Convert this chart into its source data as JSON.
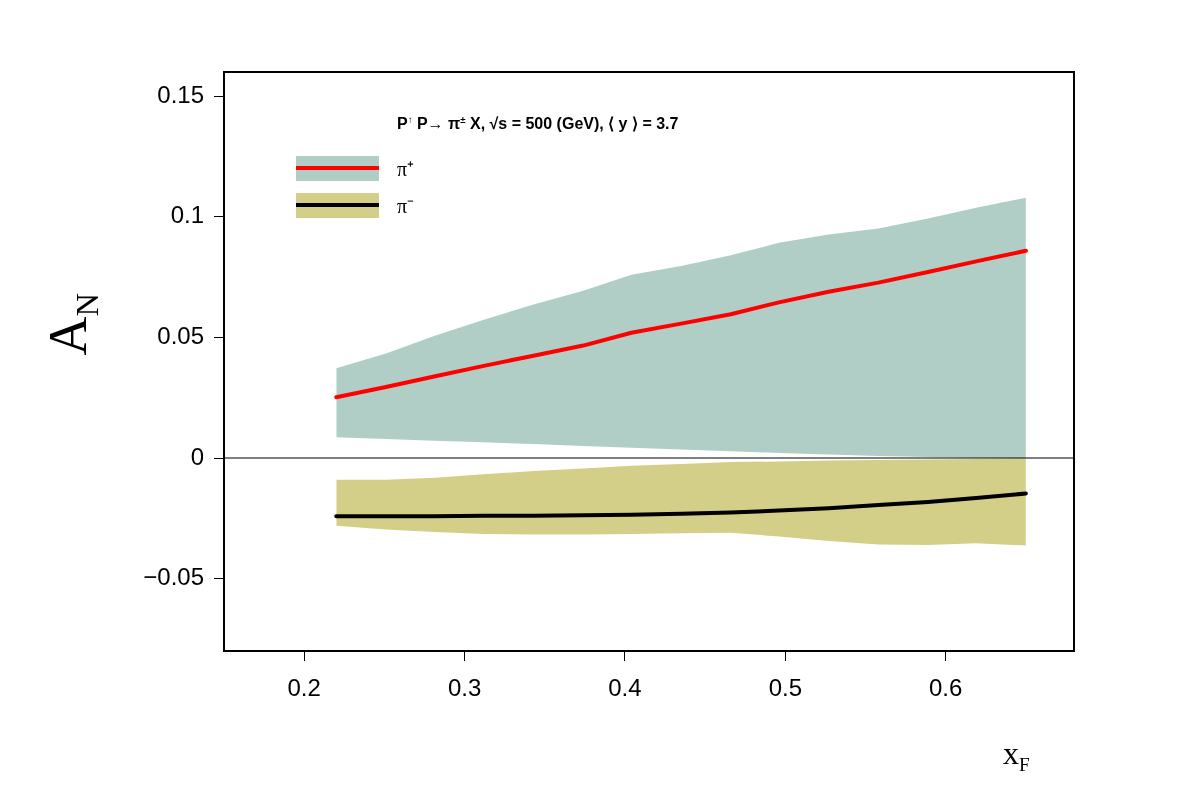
{
  "chart_data": {
    "type": "line",
    "title": "P$^{↑}$ P→ π$^{±}$ X,  √s = 500 (GeV), ⟨ y ⟩ = 3.7",
    "xlabel": "x$_{F}$",
    "ylabel": "A$_{N}$",
    "x": [
      0.22,
      0.251,
      0.281,
      0.312,
      0.343,
      0.374,
      0.404,
      0.435,
      0.466,
      0.496,
      0.527,
      0.558,
      0.589,
      0.619,
      0.65
    ],
    "series": [
      {
        "name": "π⁺",
        "color": "#ff0000",
        "values": [
          0.0252,
          0.0294,
          0.0338,
          0.0382,
          0.0424,
          0.0466,
          0.0519,
          0.0557,
          0.0596,
          0.0645,
          0.0689,
          0.0727,
          0.0771,
          0.0815,
          0.0859
        ],
        "lower": [
          0.0086,
          0.0079,
          0.0072,
          0.0065,
          0.0058,
          0.005,
          0.0042,
          0.0035,
          0.0028,
          0.0021,
          0.0014,
          0.0008,
          0.0004,
          0.0001,
          0
        ],
        "upper": [
          0.0372,
          0.0433,
          0.0506,
          0.0573,
          0.0636,
          0.0693,
          0.076,
          0.0796,
          0.084,
          0.0892,
          0.0926,
          0.0951,
          0.0993,
          0.1037,
          0.1079
        ]
      },
      {
        "name": "π⁻",
        "color": "#000000",
        "values": [
          -0.0241,
          -0.0241,
          -0.0241,
          -0.0239,
          -0.0239,
          -0.0237,
          -0.0235,
          -0.0231,
          -0.0226,
          -0.0218,
          -0.0208,
          -0.0195,
          -0.0182,
          -0.0166,
          -0.0147
        ],
        "lower": [
          -0.0281,
          -0.0296,
          -0.0307,
          -0.0315,
          -0.0317,
          -0.0317,
          -0.0315,
          -0.0312,
          -0.031,
          -0.0325,
          -0.0344,
          -0.0359,
          -0.0361,
          -0.0353,
          -0.0363
        ],
        "upper": [
          -0.009,
          -0.009,
          -0.0082,
          -0.0067,
          -0.0054,
          -0.0044,
          -0.0032,
          -0.0025,
          -0.0017,
          -0.0014,
          -0.001,
          -0.0008,
          -0.0006,
          -0.0004,
          -0.0002
        ]
      }
    ],
    "xlim": [
      0.15,
      0.68
    ],
    "xticks": [
      0.2,
      0.3,
      0.4,
      0.5,
      0.6
    ],
    "ylim": [
      -0.08,
      0.16
    ],
    "yticks": [
      0.15,
      0.1,
      0.05,
      0,
      {
        "value": -0.05,
        "label": "−0.05"
      }
    ],
    "ref_lines": [
      {
        "axis": "y",
        "value": 0,
        "color": "#000000"
      }
    ],
    "grid": false,
    "legend": "top left",
    "marker": "none",
    "line_style": "solid"
  }
}
